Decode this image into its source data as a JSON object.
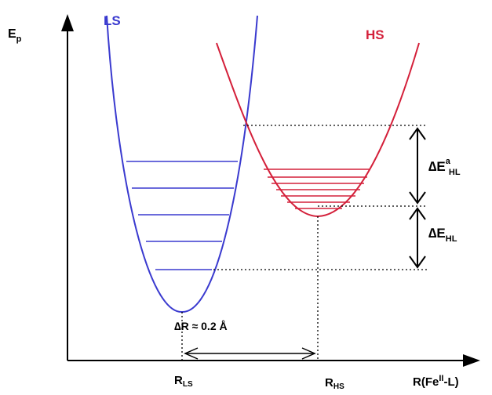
{
  "diagram": {
    "axis_y_label": "E",
    "axis_y_label_sub": "p",
    "axis_x_label": "R(Fe",
    "axis_x_label_sup": "II",
    "axis_x_label_tail": "-L)",
    "ls_curve_label": "LS",
    "hs_curve_label": "HS",
    "r_ls_label": "R",
    "r_ls_sub": "LS",
    "r_hs_label": "R",
    "r_hs_sub": "HS",
    "delta_r_label": "∆R ≈ 0.2 Å",
    "activation_label": "∆E",
    "activation_sup": "a",
    "activation_sub": "HL",
    "energy_gap_label": "∆E",
    "energy_gap_sub": "HL",
    "colors": {
      "ls": "#3a3acf",
      "hs": "#d4203a",
      "axis": "#000000"
    }
  }
}
